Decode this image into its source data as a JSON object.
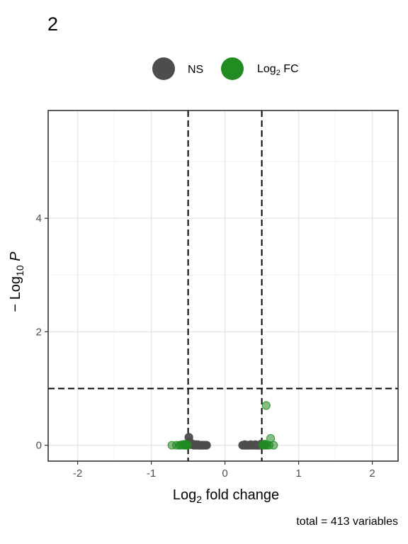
{
  "chart_data": {
    "type": "scatter",
    "title": "2",
    "xlabel": {
      "base": "Log",
      "sub": "2",
      "rest": " fold change"
    },
    "ylabel": {
      "prefix": "− Log",
      "sub": "10",
      "rest": "P"
    },
    "caption": "total = 413 variables",
    "xlim": [
      -2.4,
      2.35
    ],
    "ylim": [
      -0.28,
      5.9
    ],
    "x_ticks": [
      -2,
      -1,
      0,
      1,
      2
    ],
    "y_ticks": [
      0,
      2,
      4
    ],
    "x_tick_labels": [
      "-2",
      "-1",
      "0",
      "1",
      "2"
    ],
    "y_tick_labels": [
      "0",
      "2",
      "4"
    ],
    "grid": true,
    "legend_position": "top",
    "cutoffs": {
      "fc": [
        -0.5,
        0.5
      ],
      "p": 1.0
    },
    "series": [
      {
        "name": "NS",
        "color": "#4d4d4d",
        "x": [
          -0.49,
          -0.47,
          -0.45,
          -0.43,
          -0.41,
          -0.39,
          -0.37,
          -0.35,
          -0.33,
          -0.31,
          -0.29,
          -0.27,
          -0.25,
          -0.48,
          -0.44,
          -0.4,
          -0.36,
          -0.32,
          -0.28,
          -0.46,
          -0.42,
          -0.38,
          -0.34,
          -0.3,
          -0.26,
          0.24,
          0.26,
          0.28,
          0.3,
          0.32,
          0.34,
          0.36,
          0.38,
          0.4,
          0.42,
          0.44,
          0.46,
          0.48,
          0.27,
          0.31,
          0.35,
          0.39,
          0.43,
          0.47,
          0.25,
          0.29,
          0.33,
          0.37,
          0.41,
          0.45,
          0.49
        ],
        "y": [
          0.14,
          0.03,
          0.02,
          0.01,
          0.0,
          0.0,
          0.01,
          0.0,
          0.0,
          0.0,
          0.0,
          0.0,
          0.0,
          0.06,
          0.02,
          0.01,
          0.0,
          0.0,
          0.0,
          0.01,
          0.0,
          0.0,
          0.0,
          0.0,
          0.0,
          0.0,
          0.0,
          0.0,
          0.0,
          0.0,
          0.0,
          0.0,
          0.0,
          0.0,
          0.0,
          0.0,
          0.0,
          0.0,
          0.01,
          0.0,
          0.01,
          0.0,
          0.0,
          0.0,
          0.0,
          0.0,
          0.0,
          0.0,
          0.01,
          0.0,
          0.02
        ]
      },
      {
        "name": "Log2 FC",
        "legend_base": "Log",
        "legend_sub": "2",
        "legend_rest": " FC",
        "color": "#228b22",
        "x": [
          -0.72,
          -0.66,
          -0.62,
          -0.6,
          -0.58,
          -0.56,
          -0.55,
          -0.54,
          -0.53,
          -0.52,
          -0.51,
          0.51,
          0.52,
          0.53,
          0.54,
          0.55,
          0.56,
          0.57,
          0.6,
          0.62,
          0.66
        ],
        "y": [
          0.0,
          0.0,
          0.0,
          0.0,
          0.01,
          0.0,
          0.0,
          0.02,
          0.0,
          0.01,
          0.0,
          0.0,
          0.01,
          0.0,
          0.02,
          0.0,
          0.7,
          0.0,
          0.0,
          0.12,
          0.0
        ]
      }
    ]
  }
}
